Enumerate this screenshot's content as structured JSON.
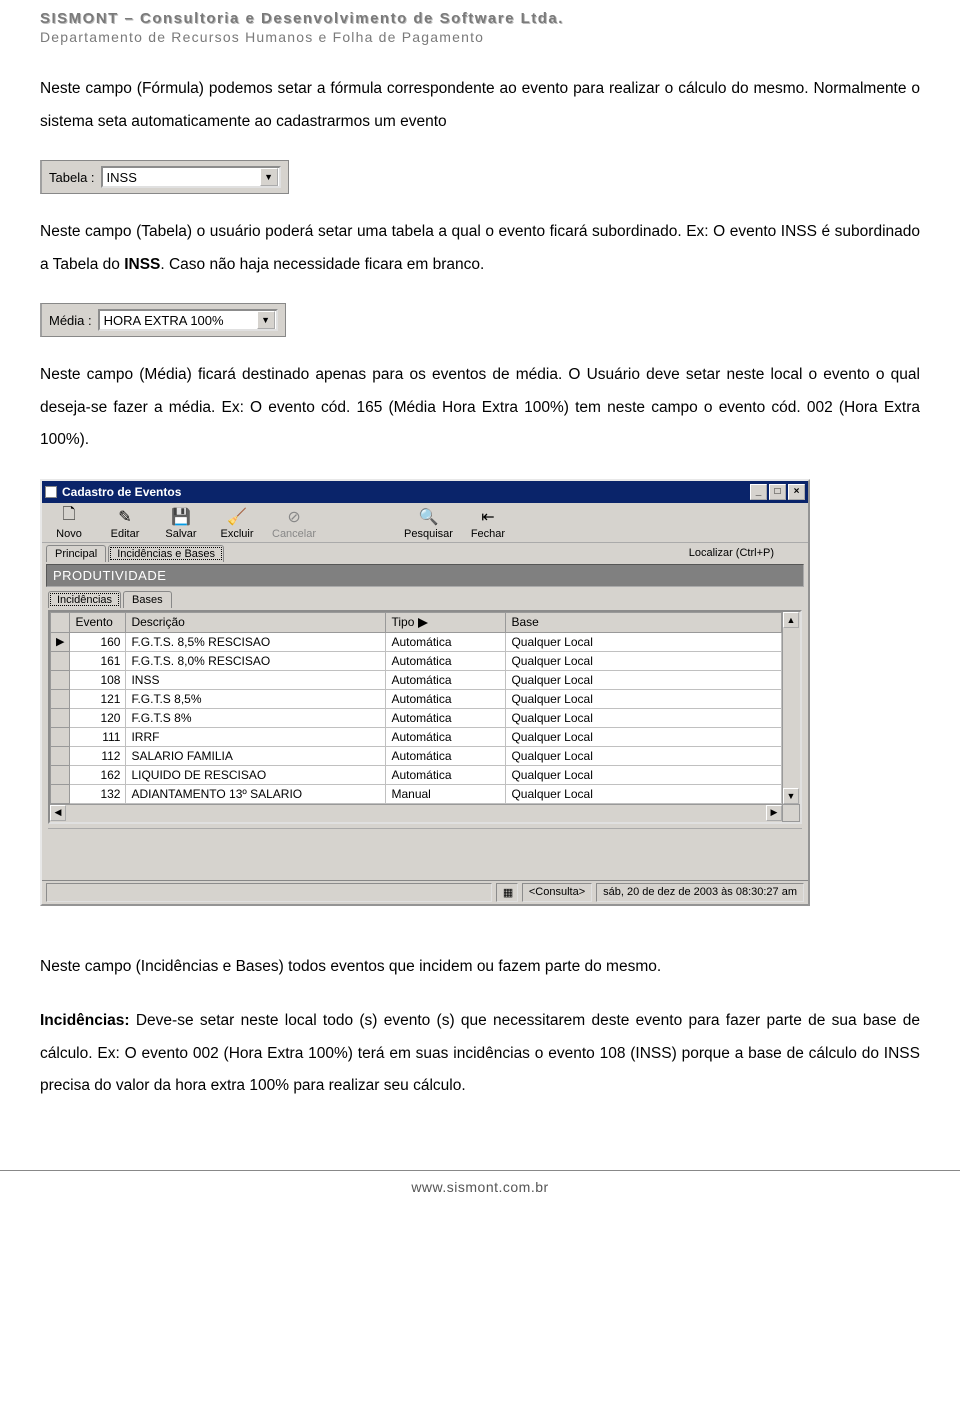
{
  "header": {
    "title": "SISMONT – Consultoria e Desenvolvimento de Software Ltda.",
    "subtitle": "Departamento de Recursos Humanos e Folha de Pagamento"
  },
  "para1": "Neste campo (Fórmula) podemos setar a fórmula correspondente ao evento para realizar o cálculo do mesmo. Normalmente o sistema seta automaticamente ao cadastrarmos um evento",
  "field_tabela": {
    "label": "Tabela :",
    "value": "INSS"
  },
  "para2a": "Neste campo (Tabela) o usuário poderá setar uma tabela a qual o evento ficará subordinado. Ex: O evento INSS é subordinado a Tabela do ",
  "para2b": "INSS",
  "para2c": ". Caso não haja necessidade ficara em branco.",
  "field_media": {
    "label": "Média :",
    "value": "HORA EXTRA 100%"
  },
  "para3": "Neste campo (Média) ficará destinado apenas para os eventos de média. O Usuário deve setar neste local o evento o qual deseja-se fazer a média. Ex: O evento cód. 165 (Média Hora Extra 100%) tem neste campo o evento cód. 002 (Hora Extra 100%).",
  "window": {
    "title": "Cadastro de Eventos",
    "toolbar": [
      {
        "label": "Novo",
        "icon": "🗋",
        "name": "novo"
      },
      {
        "label": "Editar",
        "icon": "✎",
        "name": "editar"
      },
      {
        "label": "Salvar",
        "icon": "💾",
        "name": "salvar"
      },
      {
        "label": "Excluir",
        "icon": "🧹",
        "name": "excluir"
      },
      {
        "label": "Cancelar",
        "icon": "⊘",
        "name": "cancelar",
        "disabled": true
      },
      {
        "label": "Pesquisar",
        "icon": "🔍",
        "name": "pesquisar"
      },
      {
        "label": "Fechar",
        "icon": "⇤",
        "name": "fechar"
      }
    ],
    "tabs_main": [
      "Principal",
      "Incidências e Bases"
    ],
    "localizar": "Localizar (Ctrl+P)",
    "headerband": "PRODUTIVIDADE",
    "tabs_sub": [
      "Incidências",
      "Bases"
    ],
    "columns": [
      "Evento",
      "Descrição",
      "Tipo",
      "Base"
    ],
    "rows": [
      {
        "ev": "160",
        "desc": "F.G.T.S. 8,5% RESCISAO",
        "tipo": "Automática",
        "base": "Qualquer Local",
        "cur": true
      },
      {
        "ev": "161",
        "desc": "F.G.T.S. 8,0% RESCISAO",
        "tipo": "Automática",
        "base": "Qualquer Local"
      },
      {
        "ev": "108",
        "desc": "INSS",
        "tipo": "Automática",
        "base": "Qualquer Local"
      },
      {
        "ev": "121",
        "desc": "F.G.T.S 8,5%",
        "tipo": "Automática",
        "base": "Qualquer Local"
      },
      {
        "ev": "120",
        "desc": "F.G.T.S 8%",
        "tipo": "Automática",
        "base": "Qualquer Local"
      },
      {
        "ev": "111",
        "desc": "IRRF",
        "tipo": "Automática",
        "base": "Qualquer Local"
      },
      {
        "ev": "112",
        "desc": "SALARIO FAMILIA",
        "tipo": "Automática",
        "base": "Qualquer Local"
      },
      {
        "ev": "162",
        "desc": "LIQUIDO DE RESCISAO",
        "tipo": "Automática",
        "base": "Qualquer Local"
      },
      {
        "ev": "132",
        "desc": "ADIANTAMENTO 13º SALARIO",
        "tipo": "Manual",
        "base": "Qualquer Local"
      }
    ],
    "status_consulta": "<Consulta>",
    "status_date": "sáb, 20 de dez de 2003 às 08:30:27 am"
  },
  "para4": "Neste campo (Incidências e Bases) todos eventos que incidem ou fazem parte do mesmo.",
  "para5a": "Incidências:",
  "para5b": " Deve-se setar neste local todo (s) evento (s) que necessitarem deste evento para fazer parte de sua base de cálculo. Ex: O evento 002 (Hora Extra 100%) terá em suas incidências o evento 108 (INSS) porque a base de cálculo do INSS precisa do valor da hora extra 100% para realizar seu cálculo.",
  "footer": "www.sismont.com.br",
  "colors": {
    "win_bg": "#d6d3ce",
    "titlebar": "#0a246a",
    "band": "#808080",
    "header_gray": "#7a7a7a"
  }
}
